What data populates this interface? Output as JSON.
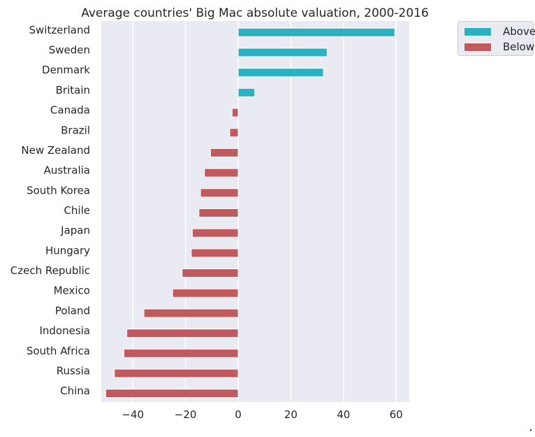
{
  "chart_data": {
    "type": "bar",
    "orientation": "horizontal",
    "title": "Average countries' Big Mac absolute valuation, 2000-2016",
    "xlabel": "",
    "ylabel": "",
    "xlim": [
      -52,
      65
    ],
    "xticks": [
      -40,
      -20,
      0,
      20,
      40,
      60
    ],
    "xtick_labels": [
      "−40",
      "−20",
      "0",
      "20",
      "40",
      "60"
    ],
    "grid": true,
    "legend_position": "outside-top-right",
    "colors": {
      "Above": "#2bb1c1",
      "Below": "#c05a5e",
      "background": "#eaeaf2",
      "grid": "#ffffff"
    },
    "legend": [
      {
        "label": "Above",
        "color": "#2bb1c1"
      },
      {
        "label": "Below",
        "color": "#c05a5e"
      }
    ],
    "categories": [
      "Switzerland",
      "Sweden",
      "Denmark",
      "Britain",
      "Canada",
      "Brazil",
      "New Zealand",
      "Australia",
      "South Korea",
      "Chile",
      "Japan",
      "Hungary",
      "Czech Republic",
      "Mexico",
      "Poland",
      "Indonesia",
      "South Africa",
      "Russia",
      "China"
    ],
    "values": [
      59.5,
      33.8,
      32.4,
      6.3,
      -2.3,
      -3.2,
      -10.5,
      -12.8,
      -14.3,
      -14.9,
      -17.4,
      -17.8,
      -21.3,
      -24.9,
      -35.8,
      -42.3,
      -43.4,
      -47.0,
      -50.3
    ],
    "groups": [
      "Above",
      "Above",
      "Above",
      "Above",
      "Below",
      "Below",
      "Below",
      "Below",
      "Below",
      "Below",
      "Below",
      "Below",
      "Below",
      "Below",
      "Below",
      "Below",
      "Below",
      "Below",
      "Below"
    ]
  },
  "corner_mark": "."
}
